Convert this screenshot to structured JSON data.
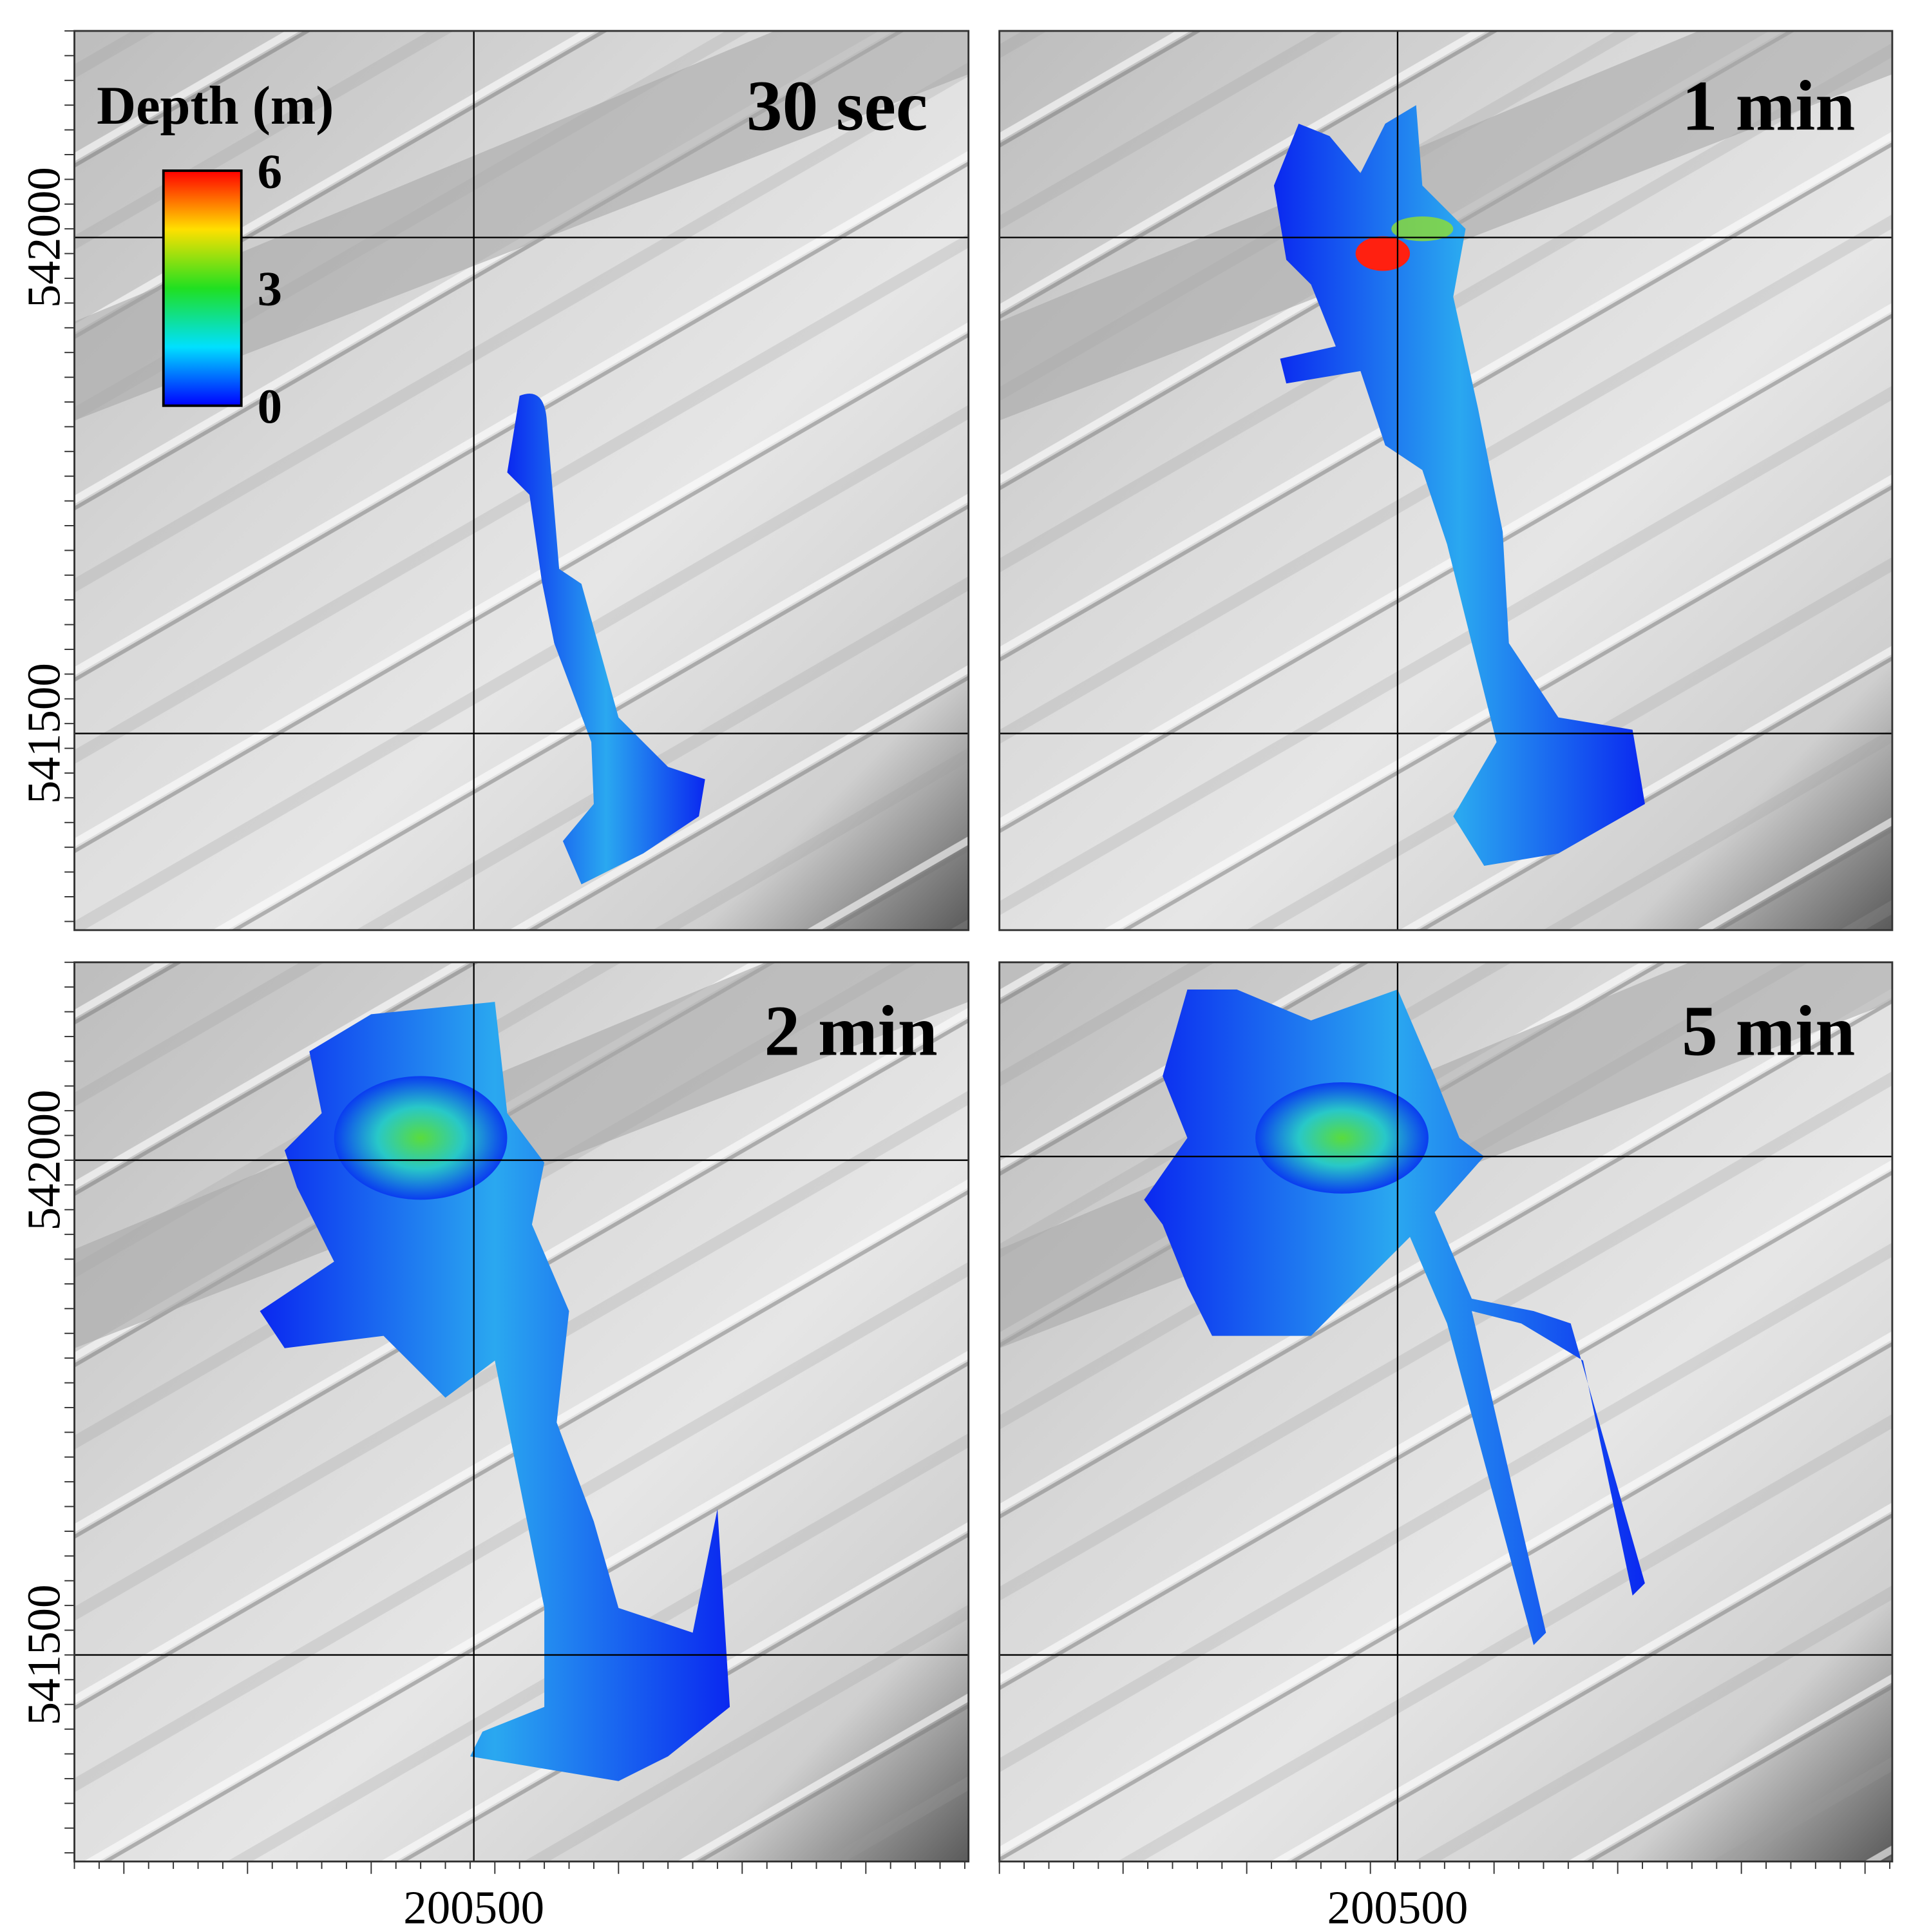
{
  "legend": {
    "title": "Depth (m)",
    "ticks": [
      6,
      3,
      0
    ]
  },
  "panels": [
    {
      "label": "30 sec"
    },
    {
      "label": "1 min"
    },
    {
      "label": "2 min"
    },
    {
      "label": "5 min"
    }
  ],
  "axes": {
    "y_labels": [
      "542000",
      "541500"
    ],
    "x_label": "200500"
  }
}
